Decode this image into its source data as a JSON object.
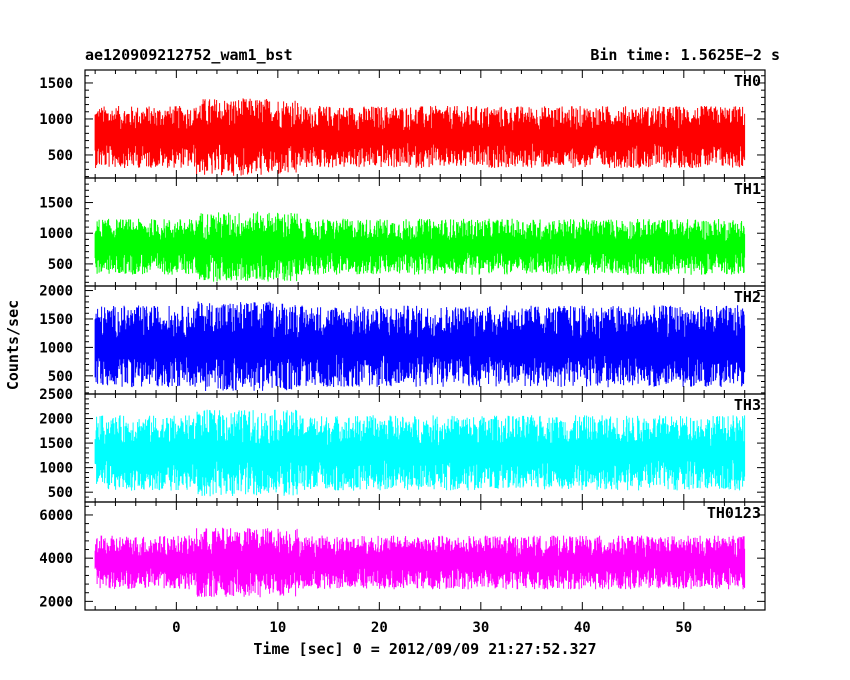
{
  "chart_data": {
    "type": "line",
    "title": "ae120909212752_wam1_bst",
    "subtitle": "Bin time: 1.5625E−2 s",
    "xlabel": "Time [sec] 0 = 2012/09/09 21:27:52.327",
    "ylabel": "Counts/sec",
    "xlim": [
      -9,
      58
    ],
    "x_data_range": [
      -8,
      56
    ],
    "xticks": [
      "0",
      "10",
      "20",
      "30",
      "40",
      "50"
    ],
    "grid": false,
    "panels": [
      {
        "name": "TH0",
        "color": "#ff0000",
        "ylim": [
          180,
          1680
        ],
        "yticks": [
          "500",
          "1000",
          "1500"
        ],
        "base": 750,
        "noise": 900,
        "burst": 1.25
      },
      {
        "name": "TH1",
        "color": "#00ff00",
        "ylim": [
          140,
          1900
        ],
        "yticks": [
          "500",
          "1000",
          "1500"
        ],
        "base": 780,
        "noise": 950,
        "burst": 1.25
      },
      {
        "name": "TH2",
        "color": "#0000ff",
        "ylim": [
          180,
          2080
        ],
        "yticks": [
          "500",
          "1000",
          "1500",
          "2000"
        ],
        "base": 1020,
        "noise": 1500,
        "burst": 1.1
      },
      {
        "name": "TH3",
        "color": "#00ffff",
        "ylim": [
          300,
          2500
        ],
        "yticks": [
          "500",
          "1000",
          "1500",
          "2000",
          "2500"
        ],
        "base": 1300,
        "noise": 1600,
        "burst": 1.15
      },
      {
        "name": "TH0123",
        "color": "#ff00ff",
        "ylim": [
          1600,
          6600
        ],
        "yticks": [
          "2000",
          "4000",
          "6000"
        ],
        "base": 3800,
        "noise": 2600,
        "burst": 1.3
      }
    ]
  }
}
